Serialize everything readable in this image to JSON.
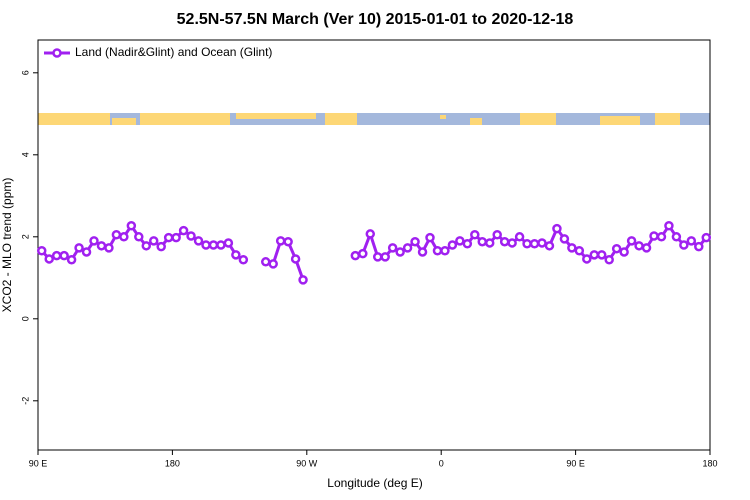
{
  "chart_data": {
    "type": "line",
    "title": "52.5N-57.5N March (Ver 10)   2015-01-01 to 2020-12-18",
    "x_label": "Longitude (deg E)",
    "y_label": "XCO2 - MLO trend (ppm)",
    "xlim": [
      90,
      540
    ],
    "ylim": [
      -3.2,
      6.8
    ],
    "xticks": [
      {
        "value": 90,
        "label": "90 E"
      },
      180,
      {
        "value": 270,
        "label": "90 W"
      },
      {
        "value": 360,
        "label": "0"
      },
      {
        "value": 450,
        "label": "90 E"
      },
      {
        "value": 540,
        "label": "180"
      }
    ],
    "yticks": [
      -2,
      0,
      2,
      4,
      6
    ],
    "grid": false,
    "legend": "top-left",
    "x": [
      92.5,
      97.5,
      102.5,
      107.5,
      112.5,
      117.5,
      122.5,
      127.5,
      132.5,
      137.5,
      142.5,
      147.5,
      152.5,
      157.5,
      162.5,
      167.5,
      172.5,
      177.5,
      182.5,
      187.5,
      192.5,
      197.5,
      202.5,
      207.5,
      212.5,
      217.5,
      222.5,
      227.5,
      232.5,
      237.5,
      242.5,
      247.5,
      252.5,
      257.5,
      262.5,
      267.5,
      272.5,
      277.5,
      282.5,
      287.5,
      292.5,
      297.5,
      302.5,
      307.5,
      312.5,
      317.5,
      322.5,
      327.5,
      332.5,
      337.5,
      342.5,
      347.5,
      352.5,
      357.5,
      362.5,
      367.5,
      372.5,
      377.5,
      382.5,
      387.5,
      392.5,
      397.5,
      402.5,
      407.5,
      412.5,
      417.5,
      422.5,
      427.5,
      432.5,
      437.5,
      442.5,
      447.5,
      452.5,
      457.5,
      462.5,
      467.5,
      472.5,
      477.5,
      482.5,
      487.5,
      492.5,
      497.5,
      502.5,
      507.5,
      512.5,
      517.5,
      522.5,
      527.5,
      532.5,
      537.5
    ],
    "series": [
      {
        "name": "Land (Nadir&Glint) and Ocean (Glint)",
        "color": "#a020f0",
        "values": [
          1.66,
          1.46,
          1.54,
          1.54,
          1.44,
          1.73,
          1.63,
          1.9,
          1.78,
          1.73,
          2.05,
          2.0,
          2.27,
          2.0,
          1.78,
          1.9,
          1.76,
          1.98,
          1.98,
          2.15,
          2.02,
          1.9,
          1.8,
          1.8,
          1.8,
          1.85,
          1.56,
          1.44,
          null,
          null,
          1.39,
          1.34,
          1.9,
          1.88,
          1.46,
          0.95,
          null,
          null,
          null,
          null,
          null,
          null,
          1.54,
          1.59,
          2.07,
          1.51,
          1.51,
          1.73,
          1.63,
          1.73,
          1.88,
          1.63,
          1.98,
          1.66,
          1.66,
          1.8,
          1.9,
          1.83,
          2.05,
          1.88,
          1.85,
          2.05,
          1.88,
          1.85,
          2.0,
          1.83,
          1.83,
          1.85,
          1.78,
          2.2,
          1.95,
          1.73,
          1.66,
          1.46,
          1.56,
          1.56,
          1.44,
          1.71,
          1.63,
          1.9,
          1.78,
          1.73,
          2.02,
          2.0,
          2.27,
          2.0,
          1.8,
          1.9,
          1.76,
          1.98
        ]
      }
    ]
  }
}
